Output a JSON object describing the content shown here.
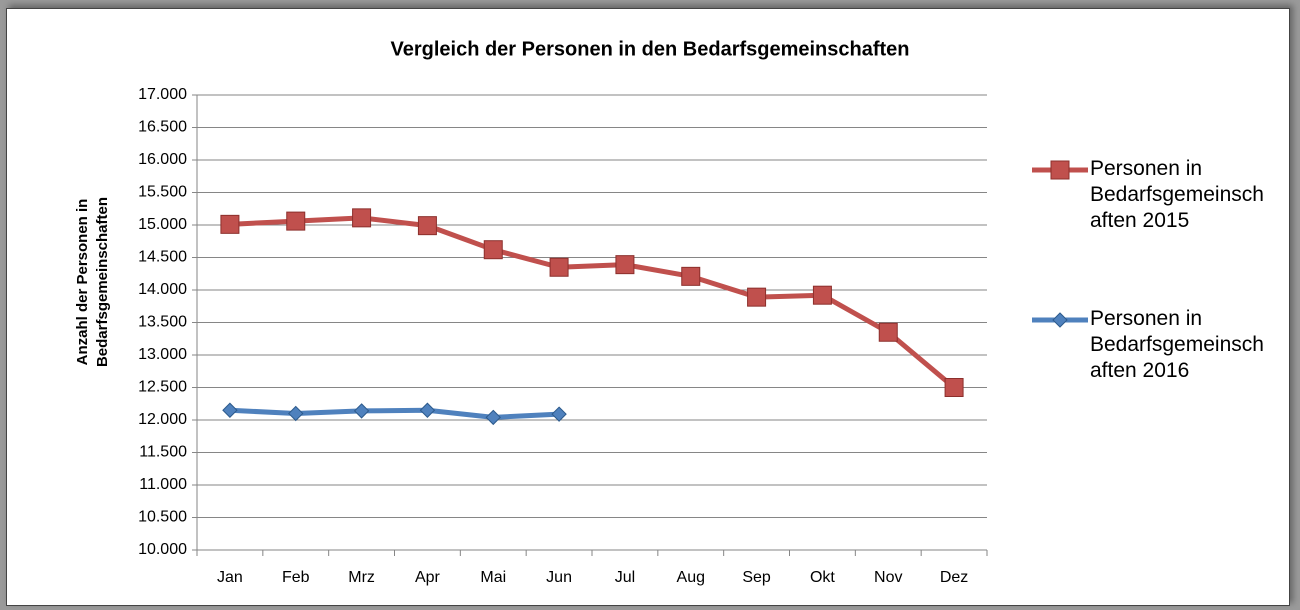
{
  "chart_data": {
    "type": "line",
    "title": "Vergleich der Personen in den Bedarfsgemeinschaften",
    "y_label": "Anzahl der Personen in Bedarfsgemeinschaften",
    "categories": [
      "Jan",
      "Feb",
      "Mrz",
      "Apr",
      "Mai",
      "Jun",
      "Jul",
      "Aug",
      "Sep",
      "Okt",
      "Nov",
      "Dez"
    ],
    "series": [
      {
        "name": "Personen in Bedarfsgemeinschaften 2015",
        "color": "#c0504d",
        "marker": "square",
        "values": [
          15010,
          15060,
          15110,
          14990,
          14620,
          14350,
          14390,
          14210,
          13890,
          13920,
          13350,
          12500
        ]
      },
      {
        "name": "Personen in Bedarfsgemeinschaften 2016",
        "color": "#4f81bd",
        "marker": "diamond",
        "values": [
          12150,
          12100,
          12140,
          12150,
          12040,
          12090,
          null,
          null,
          null,
          null,
          null,
          null
        ]
      }
    ],
    "ylim": [
      10000,
      17000
    ],
    "yticks": [
      {
        "value": 10000,
        "label": "10.000"
      },
      {
        "value": 10500,
        "label": "10.500"
      },
      {
        "value": 11000,
        "label": "11.000"
      },
      {
        "value": 11500,
        "label": "11.500"
      },
      {
        "value": 12000,
        "label": "12.000"
      },
      {
        "value": 12500,
        "label": "12.500"
      },
      {
        "value": 13000,
        "label": "13.000"
      },
      {
        "value": 13500,
        "label": "13.500"
      },
      {
        "value": 14000,
        "label": "14.000"
      },
      {
        "value": 14500,
        "label": "14.500"
      },
      {
        "value": 15000,
        "label": "15.000"
      },
      {
        "value": 15500,
        "label": "15.500"
      },
      {
        "value": 16000,
        "label": "16.000"
      },
      {
        "value": 16500,
        "label": "16.500"
      },
      {
        "value": 17000,
        "label": "17.000"
      }
    ],
    "grid": true,
    "legend": "right"
  }
}
